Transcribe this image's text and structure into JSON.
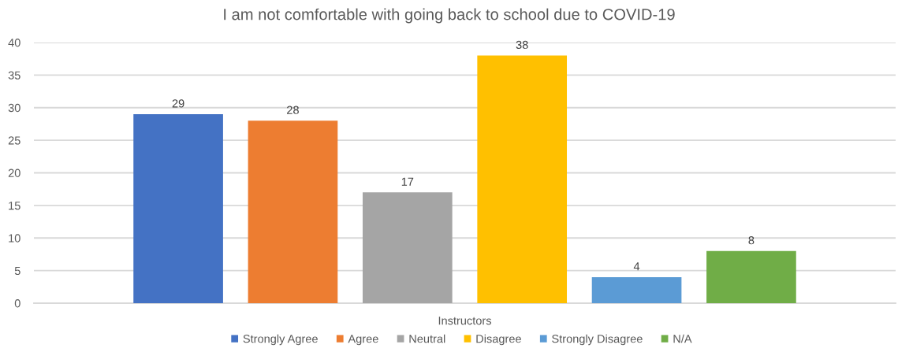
{
  "chart_data": {
    "type": "bar",
    "title": "I am not comfortable with going back to school due to COVID-19",
    "categories": [
      "Instructors"
    ],
    "series": [
      {
        "name": "Strongly Agree",
        "color": "#4472c4",
        "values": [
          29
        ]
      },
      {
        "name": "Agree",
        "color": "#ed7d31",
        "values": [
          28
        ]
      },
      {
        "name": "Neutral",
        "color": "#a5a5a5",
        "values": [
          17
        ]
      },
      {
        "name": "Disagree",
        "color": "#ffc000",
        "values": [
          38
        ]
      },
      {
        "name": "Strongly Disagree",
        "color": "#5b9bd5",
        "values": [
          4
        ]
      },
      {
        "name": "N/A",
        "color": "#70ad47",
        "values": [
          8
        ]
      }
    ],
    "ylim": [
      0,
      40
    ],
    "yticks": [
      0,
      5,
      10,
      15,
      20,
      25,
      30,
      35,
      40
    ],
    "grid": "y",
    "legend": "bottom",
    "data_labels": true
  }
}
